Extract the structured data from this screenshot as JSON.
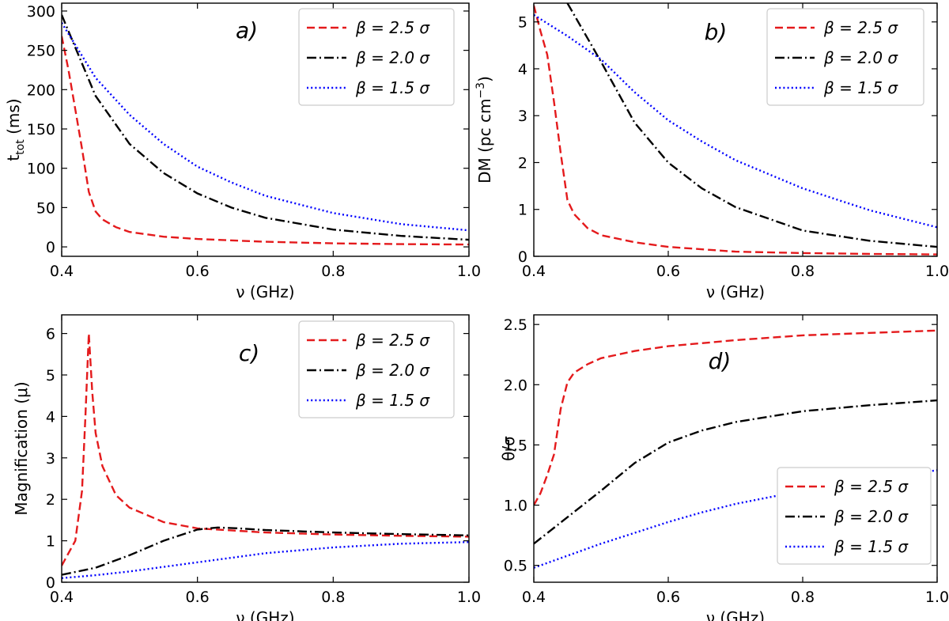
{
  "chart_data": [
    {
      "type": "line",
      "panel_label": "a)",
      "xlabel": "ν (GHz)",
      "ylabel": "t",
      "ylabel_sub": "tot",
      "ylabel_unit": " (ms)",
      "xlim": [
        0.4,
        1.0
      ],
      "ylim": [
        -12,
        310
      ],
      "xticks": [
        0.4,
        0.6,
        0.8,
        1.0
      ],
      "xtick_labels": [
        "0.4",
        "0.6",
        "0.8",
        "1.0"
      ],
      "yticks": [
        0,
        50,
        100,
        150,
        200,
        250,
        300
      ],
      "ytick_labels": [
        "0",
        "50",
        "100",
        "150",
        "200",
        "250",
        "300"
      ],
      "legend_position": "top-right",
      "series": [
        {
          "name": "β = 2.5 σ",
          "color": "#e41a1c",
          "dash": "dashed",
          "x": [
            0.4,
            0.41,
            0.42,
            0.43,
            0.44,
            0.45,
            0.46,
            0.48,
            0.5,
            0.55,
            0.6,
            0.7,
            0.8,
            0.9,
            1.0
          ],
          "y": [
            268,
            225,
            175,
            125,
            70,
            45,
            35,
            25,
            19,
            13,
            10,
            6.5,
            4.5,
            3.5,
            3
          ]
        },
        {
          "name": "β = 2.0 σ",
          "color": "#000000",
          "dash": "dashdot",
          "x": [
            0.4,
            0.45,
            0.5,
            0.55,
            0.6,
            0.65,
            0.7,
            0.8,
            0.9,
            1.0
          ],
          "y": [
            295,
            192,
            131,
            94,
            68,
            50,
            37,
            22,
            14,
            9
          ]
        },
        {
          "name": "β = 1.5 σ",
          "color": "#0000ff",
          "dash": "dotted",
          "x": [
            0.4,
            0.45,
            0.5,
            0.55,
            0.6,
            0.65,
            0.7,
            0.8,
            0.9,
            1.0
          ],
          "y": [
            285,
            215,
            168,
            131,
            102,
            82,
            65,
            43,
            29,
            21
          ]
        }
      ]
    },
    {
      "type": "line",
      "panel_label": "b)",
      "xlabel": "ν (GHz)",
      "ylabel": "DM (pc cm",
      "ylabel_sup": "−3",
      "ylabel_end": ")",
      "xlim": [
        0.4,
        1.0
      ],
      "ylim": [
        0,
        5.4
      ],
      "xticks": [
        0.4,
        0.6,
        0.8,
        1.0
      ],
      "xtick_labels": [
        "0.4",
        "0.6",
        "0.8",
        "1.0"
      ],
      "yticks": [
        0,
        1,
        2,
        3,
        4,
        5
      ],
      "ytick_labels": [
        "0",
        "1",
        "2",
        "3",
        "4",
        "5"
      ],
      "legend_position": "top-right",
      "series": [
        {
          "name": "β = 2.5 σ",
          "color": "#e41a1c",
          "dash": "dashed",
          "x": [
            0.4,
            0.41,
            0.42,
            0.43,
            0.44,
            0.45,
            0.46,
            0.48,
            0.5,
            0.55,
            0.6,
            0.7,
            0.8,
            0.9,
            1.0
          ],
          "y": [
            5.35,
            4.8,
            4.3,
            3.3,
            2.2,
            1.2,
            0.9,
            0.6,
            0.45,
            0.3,
            0.2,
            0.1,
            0.07,
            0.05,
            0.04
          ]
        },
        {
          "name": "β = 2.0 σ",
          "color": "#000000",
          "dash": "dashdot",
          "x": [
            0.45,
            0.5,
            0.55,
            0.6,
            0.65,
            0.7,
            0.8,
            0.9,
            1.0
          ],
          "y": [
            5.4,
            4.15,
            2.85,
            2.0,
            1.45,
            1.05,
            0.55,
            0.33,
            0.2
          ]
        },
        {
          "name": "β = 1.5 σ",
          "color": "#0000ff",
          "dash": "dotted",
          "x": [
            0.4,
            0.45,
            0.5,
            0.55,
            0.6,
            0.65,
            0.7,
            0.8,
            0.9,
            1.0
          ],
          "y": [
            5.15,
            4.7,
            4.2,
            3.5,
            2.9,
            2.45,
            2.05,
            1.45,
            0.98,
            0.62
          ]
        }
      ]
    },
    {
      "type": "line",
      "panel_label": "c)",
      "xlabel": "ν (GHz)",
      "ylabel": "Magnification (μ)",
      "xlim": [
        0.4,
        1.0
      ],
      "ylim": [
        0,
        6.45
      ],
      "xticks": [
        0.4,
        0.6,
        0.8,
        1.0
      ],
      "xtick_labels": [
        "0.4",
        "0.6",
        "0.8",
        "1.0"
      ],
      "yticks": [
        0,
        1,
        2,
        3,
        4,
        5,
        6
      ],
      "ytick_labels": [
        "0",
        "1",
        "2",
        "3",
        "4",
        "5",
        "6"
      ],
      "legend_position": "top-right",
      "series": [
        {
          "name": "β = 2.5 σ",
          "color": "#e41a1c",
          "dash": "dashed",
          "x": [
            0.4,
            0.42,
            0.43,
            0.435,
            0.44,
            0.445,
            0.45,
            0.46,
            0.48,
            0.5,
            0.55,
            0.6,
            0.7,
            0.8,
            0.9,
            1.0
          ],
          "y": [
            0.4,
            1.0,
            2.2,
            4.0,
            6.0,
            4.6,
            3.6,
            2.8,
            2.1,
            1.8,
            1.45,
            1.3,
            1.2,
            1.15,
            1.12,
            1.1
          ]
        },
        {
          "name": "β = 2.0 σ",
          "color": "#000000",
          "dash": "dashdot",
          "x": [
            0.4,
            0.45,
            0.5,
            0.55,
            0.6,
            0.63,
            0.66,
            0.7,
            0.8,
            0.9,
            1.0
          ],
          "y": [
            0.18,
            0.35,
            0.65,
            1.0,
            1.27,
            1.32,
            1.3,
            1.26,
            1.2,
            1.16,
            1.13
          ]
        },
        {
          "name": "β = 1.5 σ",
          "color": "#0000ff",
          "dash": "dotted",
          "x": [
            0.4,
            0.45,
            0.5,
            0.55,
            0.6,
            0.65,
            0.7,
            0.8,
            0.9,
            1.0
          ],
          "y": [
            0.1,
            0.17,
            0.26,
            0.37,
            0.48,
            0.59,
            0.7,
            0.84,
            0.93,
            0.97
          ]
        }
      ]
    },
    {
      "type": "line",
      "panel_label": "d)",
      "xlabel": "ν (GHz)",
      "ylabel": "θ/σ",
      "xlim": [
        0.4,
        1.0
      ],
      "ylim": [
        0.36,
        2.58
      ],
      "xticks": [
        0.4,
        0.6,
        0.8,
        1.0
      ],
      "xtick_labels": [
        "0.4",
        "0.6",
        "0.8",
        "1.0"
      ],
      "yticks": [
        0.5,
        1.0,
        1.5,
        2.0,
        2.5
      ],
      "ytick_labels": [
        "0.5",
        "1.0",
        "1.5",
        "2.0",
        "2.5"
      ],
      "legend_position": "lower-right",
      "series": [
        {
          "name": "β = 2.5 σ",
          "color": "#e41a1c",
          "dash": "dashed",
          "x": [
            0.4,
            0.41,
            0.42,
            0.43,
            0.44,
            0.45,
            0.46,
            0.48,
            0.5,
            0.55,
            0.6,
            0.7,
            0.8,
            0.9,
            1.0
          ],
          "y": [
            1.0,
            1.1,
            1.25,
            1.42,
            1.8,
            2.02,
            2.1,
            2.17,
            2.22,
            2.28,
            2.32,
            2.37,
            2.41,
            2.43,
            2.45
          ]
        },
        {
          "name": "β = 2.0 σ",
          "color": "#000000",
          "dash": "dashdot",
          "x": [
            0.4,
            0.45,
            0.5,
            0.55,
            0.6,
            0.65,
            0.7,
            0.8,
            0.9,
            1.0
          ],
          "y": [
            0.68,
            0.9,
            1.12,
            1.35,
            1.52,
            1.62,
            1.69,
            1.78,
            1.83,
            1.87
          ]
        },
        {
          "name": "β = 1.5 σ",
          "color": "#0000ff",
          "dash": "dotted",
          "x": [
            0.4,
            0.45,
            0.5,
            0.55,
            0.6,
            0.65,
            0.7,
            0.8,
            0.9,
            1.0
          ],
          "y": [
            0.48,
            0.58,
            0.68,
            0.77,
            0.86,
            0.94,
            1.01,
            1.12,
            1.21,
            1.29
          ]
        }
      ]
    }
  ]
}
